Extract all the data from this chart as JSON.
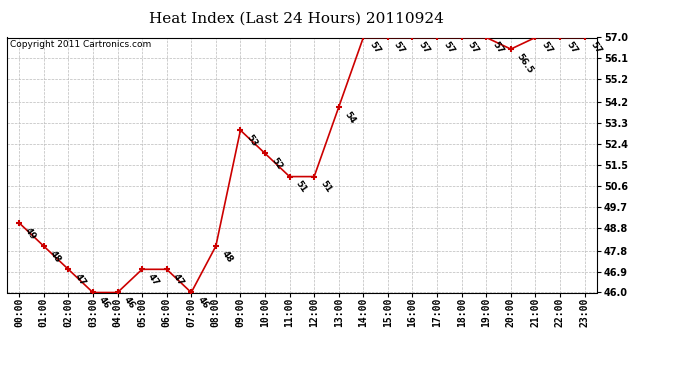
{
  "title": "Heat Index (Last 24 Hours) 20110924",
  "copyright": "Copyright 2011 Cartronics.com",
  "x_labels": [
    "00:00",
    "01:00",
    "02:00",
    "03:00",
    "04:00",
    "05:00",
    "06:00",
    "07:00",
    "08:00",
    "09:00",
    "10:00",
    "11:00",
    "12:00",
    "13:00",
    "14:00",
    "15:00",
    "16:00",
    "17:00",
    "18:00",
    "19:00",
    "20:00",
    "21:00",
    "22:00",
    "23:00"
  ],
  "y_values": [
    49,
    48,
    47,
    46,
    46,
    47,
    47,
    46,
    48,
    53,
    52,
    51,
    51,
    54,
    57,
    57,
    57,
    57,
    57,
    57,
    56.5,
    57,
    57,
    57
  ],
  "point_labels": [
    "49",
    "48",
    "47",
    "46",
    "46",
    "47",
    "47",
    "46",
    "48",
    "53",
    "52",
    "51",
    "51",
    "54",
    "57",
    "57",
    "57",
    "57",
    "57",
    "57",
    "56.5",
    "57",
    "57",
    "57"
  ],
  "ylim": [
    46.0,
    57.0
  ],
  "y_ticks": [
    46.0,
    46.9,
    47.8,
    48.8,
    49.7,
    50.6,
    51.5,
    52.4,
    53.3,
    54.2,
    55.2,
    56.1,
    57.0
  ],
  "y_tick_labels": [
    "46.0",
    "46.9",
    "47.8",
    "48.8",
    "49.7",
    "50.6",
    "51.5",
    "52.4",
    "53.3",
    "54.2",
    "55.2",
    "56.1",
    "57.0"
  ],
  "line_color": "#cc0000",
  "marker_color": "#cc0000",
  "bg_color": "#ffffff",
  "grid_color": "#bbbbbb",
  "title_fontsize": 11,
  "point_label_fontsize": 6.5,
  "tick_fontsize": 7,
  "copyright_fontsize": 6.5
}
